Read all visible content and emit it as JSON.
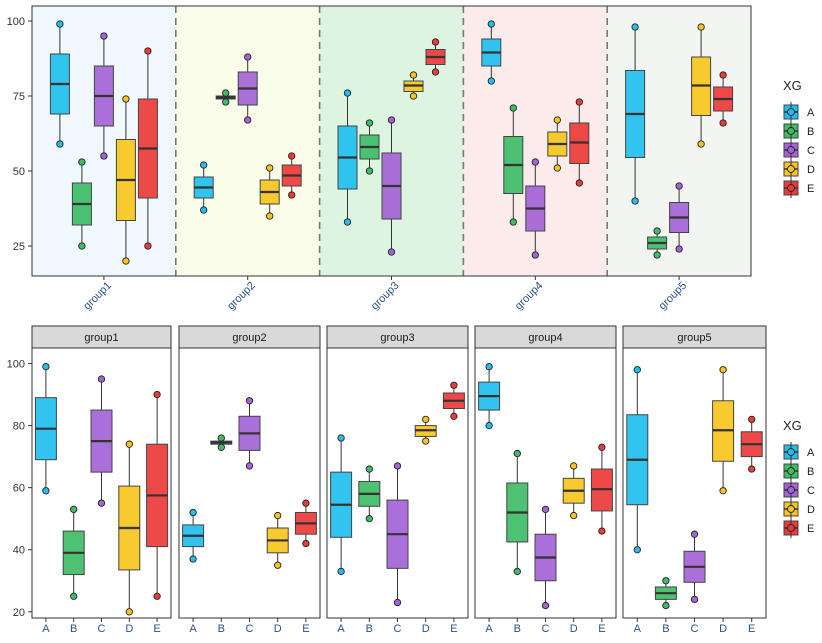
{
  "legend_title": "XG",
  "groups": [
    "group1",
    "group2",
    "group3",
    "group4",
    "group5"
  ],
  "series_names": [
    "A",
    "B",
    "C",
    "D",
    "E"
  ],
  "colors": {
    "A": "#1fbfef",
    "B": "#3dbd66",
    "C": "#a463d6",
    "D": "#f7c51d",
    "E": "#ec3a3a"
  },
  "panel_backgrounds": [
    "#eef8fd",
    "#fafdea",
    "#dcf4e0",
    "#fcebeb",
    "#f3f5f3"
  ],
  "chart_data": [
    {
      "type": "boxplot",
      "title": "",
      "layout": "grouped boxplot with shaded group bands",
      "x": [
        "group1",
        "group2",
        "group3",
        "group4",
        "group5"
      ],
      "ylim": [
        15,
        105
      ],
      "y_ticks": [
        25,
        50,
        75,
        100
      ],
      "x_tick_rotation": 45,
      "series": [
        {
          "name": "A",
          "boxes": [
            {
              "group": "group1",
              "min": 59,
              "q1": 69,
              "median": 79,
              "q3": 89,
              "max": 99
            },
            {
              "group": "group2",
              "min": 37,
              "q1": 41,
              "median": 44.5,
              "q3": 48,
              "max": 52
            },
            {
              "group": "group3",
              "min": 33,
              "q1": 44,
              "median": 54.5,
              "q3": 65,
              "max": 76
            },
            {
              "group": "group4",
              "min": 80,
              "q1": 85,
              "median": 89.5,
              "q3": 94,
              "max": 99
            },
            {
              "group": "group5",
              "min": 40,
              "q1": 54.5,
              "median": 69,
              "q3": 83.5,
              "max": 98
            }
          ]
        },
        {
          "name": "B",
          "boxes": [
            {
              "group": "group1",
              "min": 25,
              "q1": 32,
              "median": 39,
              "q3": 46,
              "max": 53
            },
            {
              "group": "group2",
              "min": 73,
              "q1": 74,
              "median": 74.5,
              "q3": 75,
              "max": 76
            },
            {
              "group": "group3",
              "min": 50,
              "q1": 54,
              "median": 58,
              "q3": 62,
              "max": 66
            },
            {
              "group": "group4",
              "min": 33,
              "q1": 42.5,
              "median": 52,
              "q3": 61.5,
              "max": 71
            },
            {
              "group": "group5",
              "min": 22,
              "q1": 24,
              "median": 26,
              "q3": 28,
              "max": 30
            }
          ]
        },
        {
          "name": "C",
          "boxes": [
            {
              "group": "group1",
              "min": 55,
              "q1": 65,
              "median": 75,
              "q3": 85,
              "max": 95
            },
            {
              "group": "group2",
              "min": 67,
              "q1": 72,
              "median": 77.5,
              "q3": 83,
              "max": 88
            },
            {
              "group": "group3",
              "min": 23,
              "q1": 34,
              "median": 45,
              "q3": 56,
              "max": 67
            },
            {
              "group": "group4",
              "min": 22,
              "q1": 30,
              "median": 37.5,
              "q3": 45,
              "max": 53
            },
            {
              "group": "group5",
              "min": 24,
              "q1": 29.5,
              "median": 34.5,
              "q3": 39.5,
              "max": 45
            }
          ]
        },
        {
          "name": "D",
          "boxes": [
            {
              "group": "group1",
              "min": 20,
              "q1": 33.5,
              "median": 47,
              "q3": 60.5,
              "max": 74
            },
            {
              "group": "group2",
              "min": 35,
              "q1": 39,
              "median": 43,
              "q3": 47,
              "max": 51
            },
            {
              "group": "group3",
              "min": 75,
              "q1": 76.5,
              "median": 78.5,
              "q3": 80,
              "max": 82
            },
            {
              "group": "group4",
              "min": 51,
              "q1": 55,
              "median": 59,
              "q3": 63,
              "max": 67
            },
            {
              "group": "group5",
              "min": 59,
              "q1": 68.5,
              "median": 78.5,
              "q3": 88,
              "max": 98
            }
          ]
        },
        {
          "name": "E",
          "boxes": [
            {
              "group": "group1",
              "min": 25,
              "q1": 41,
              "median": 57.5,
              "q3": 74,
              "max": 90
            },
            {
              "group": "group2",
              "min": 42,
              "q1": 45,
              "median": 48.5,
              "q3": 52,
              "max": 55
            },
            {
              "group": "group3",
              "min": 83,
              "q1": 85.5,
              "median": 88,
              "q3": 90.5,
              "max": 93
            },
            {
              "group": "group4",
              "min": 46,
              "q1": 52.5,
              "median": 59.5,
              "q3": 66,
              "max": 73
            },
            {
              "group": "group5",
              "min": 66,
              "q1": 70,
              "median": 74,
              "q3": 78,
              "max": 82
            }
          ]
        }
      ]
    },
    {
      "type": "boxplot",
      "title": "",
      "layout": "faceted boxplot, one panel per group",
      "facets": [
        "group1",
        "group2",
        "group3",
        "group4",
        "group5"
      ],
      "x_categories": [
        "A",
        "B",
        "C",
        "D",
        "E"
      ],
      "ylim": [
        18,
        105
      ],
      "y_ticks": [
        20,
        40,
        60,
        80,
        100
      ],
      "note": "same box statistics as the upper chart"
    }
  ]
}
